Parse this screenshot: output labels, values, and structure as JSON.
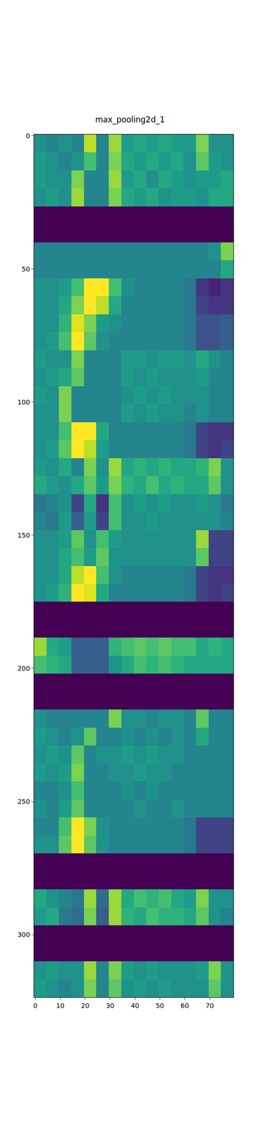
{
  "chart_data": {
    "type": "heatmap",
    "title": "max_pooling2d_1",
    "color": "Viridis",
    "xlim": [
      -0.5,
      79.5
    ],
    "ylim": [
      323.5,
      -0.5
    ],
    "xticks": [
      0,
      10,
      20,
      30,
      40,
      50,
      60,
      70
    ],
    "yticks": [
      0,
      50,
      100,
      150,
      200,
      250,
      300
    ],
    "zlim": [
      0,
      1
    ],
    "x": [
      -0.5,
      4.5,
      9.5,
      14.5,
      19.5,
      24.5,
      29.5,
      34.5,
      39.5,
      44.5,
      49.5,
      54.5,
      59.5,
      64.5,
      69.5,
      74.5,
      79.5
    ],
    "y": [
      -0.5,
      6.25,
      13,
      19.75,
      26.5,
      33.25,
      40,
      46.75,
      53.5,
      60.25,
      67,
      73.75,
      80.5,
      87.25,
      94,
      100.75,
      107.5,
      114.25,
      121,
      127.75,
      134.5,
      141.25,
      148,
      154.75,
      161.5,
      168.25,
      175,
      181.75,
      188.5,
      195.25,
      202,
      208.75,
      215.5,
      222.25,
      229,
      235.75,
      242.5,
      249.25,
      256,
      262.75,
      269.5,
      276.25,
      283,
      289.75,
      296.5,
      303.25,
      310,
      316.75,
      323.5
    ],
    "cells": [
      [
        0.5,
        0.45,
        0.5,
        0.45,
        0.9,
        0.45,
        0.85,
        0.55,
        0.6,
        0.55,
        0.6,
        0.55,
        0.55,
        0.8,
        0.5,
        0.5
      ],
      [
        0.55,
        0.5,
        0.45,
        0.5,
        0.7,
        0.45,
        0.8,
        0.6,
        0.55,
        0.6,
        0.55,
        0.6,
        0.5,
        0.75,
        0.55,
        0.5
      ],
      [
        0.55,
        0.5,
        0.5,
        0.8,
        0.45,
        0.45,
        0.85,
        0.55,
        0.6,
        0.5,
        0.6,
        0.55,
        0.5,
        0.55,
        0.55,
        0.6
      ],
      [
        0.5,
        0.55,
        0.5,
        0.85,
        0.45,
        0.45,
        0.8,
        0.6,
        0.55,
        0.6,
        0.5,
        0.55,
        0.55,
        0.5,
        0.6,
        0.6
      ],
      [
        0,
        0,
        0,
        0,
        0,
        0,
        0,
        0,
        0,
        0,
        0,
        0,
        0,
        0,
        0,
        0
      ],
      [
        0,
        0,
        0,
        0,
        0,
        0,
        0,
        0,
        0,
        0,
        0,
        0,
        0,
        0,
        0,
        0
      ],
      [
        0.45,
        0.45,
        0.45,
        0.45,
        0.45,
        0.45,
        0.45,
        0.45,
        0.45,
        0.45,
        0.45,
        0.45,
        0.45,
        0.45,
        0.5,
        0.8
      ],
      [
        0.45,
        0.45,
        0.45,
        0.45,
        0.45,
        0.45,
        0.45,
        0.45,
        0.45,
        0.45,
        0.45,
        0.45,
        0.45,
        0.45,
        0.45,
        0.6
      ],
      [
        0.5,
        0.5,
        0.55,
        0.7,
        1,
        1,
        0.7,
        0.5,
        0.45,
        0.45,
        0.45,
        0.45,
        0.4,
        0.15,
        0.1,
        0.15
      ],
      [
        0.5,
        0.5,
        0.6,
        0.8,
        1,
        0.9,
        0.6,
        0.45,
        0.45,
        0.45,
        0.45,
        0.45,
        0.4,
        0.2,
        0.15,
        0.15
      ],
      [
        0.5,
        0.5,
        0.65,
        0.95,
        0.8,
        0.55,
        0.5,
        0.45,
        0.45,
        0.45,
        0.45,
        0.45,
        0.4,
        0.25,
        0.25,
        0.3
      ],
      [
        0.5,
        0.55,
        0.7,
        1,
        0.75,
        0.5,
        0.45,
        0.45,
        0.45,
        0.45,
        0.45,
        0.45,
        0.4,
        0.25,
        0.25,
        0.3
      ],
      [
        0.55,
        0.5,
        0.5,
        0.8,
        0.45,
        0.45,
        0.45,
        0.55,
        0.55,
        0.5,
        0.55,
        0.55,
        0.5,
        0.6,
        0.5,
        0.45
      ],
      [
        0.5,
        0.55,
        0.6,
        0.75,
        0.45,
        0.45,
        0.45,
        0.55,
        0.5,
        0.55,
        0.5,
        0.5,
        0.5,
        0.55,
        0.45,
        0.45
      ],
      [
        0.55,
        0.5,
        0.8,
        0.45,
        0.45,
        0.45,
        0.45,
        0.5,
        0.55,
        0.5,
        0.55,
        0.5,
        0.5,
        0.5,
        0.45,
        0.45
      ],
      [
        0.5,
        0.5,
        0.8,
        0.45,
        0.45,
        0.45,
        0.45,
        0.55,
        0.5,
        0.55,
        0.5,
        0.5,
        0.45,
        0.5,
        0.45,
        0.45
      ],
      [
        0.5,
        0.5,
        0.7,
        1,
        1,
        0.6,
        0.45,
        0.45,
        0.45,
        0.45,
        0.45,
        0.45,
        0.4,
        0.2,
        0.15,
        0.15
      ],
      [
        0.5,
        0.55,
        0.75,
        1,
        0.9,
        0.55,
        0.45,
        0.45,
        0.45,
        0.45,
        0.45,
        0.45,
        0.4,
        0.2,
        0.15,
        0.2
      ],
      [
        0.55,
        0.5,
        0.6,
        0.45,
        0.8,
        0.5,
        0.85,
        0.6,
        0.65,
        0.6,
        0.65,
        0.6,
        0.6,
        0.65,
        0.8,
        0.5
      ],
      [
        0.6,
        0.55,
        0.5,
        0.6,
        0.75,
        0.55,
        0.8,
        0.65,
        0.6,
        0.7,
        0.6,
        0.65,
        0.6,
        0.6,
        0.75,
        0.5
      ],
      [
        0.4,
        0.45,
        0.5,
        0.2,
        0.6,
        0.15,
        0.7,
        0.5,
        0.55,
        0.5,
        0.55,
        0.5,
        0.5,
        0.55,
        0.5,
        0.4
      ],
      [
        0.45,
        0.4,
        0.55,
        0.3,
        0.55,
        0.2,
        0.7,
        0.5,
        0.5,
        0.55,
        0.5,
        0.5,
        0.5,
        0.5,
        0.5,
        0.45
      ],
      [
        0.5,
        0.5,
        0.55,
        0.75,
        0.5,
        0.7,
        0.55,
        0.5,
        0.5,
        0.5,
        0.5,
        0.5,
        0.5,
        0.85,
        0.2,
        0.2
      ],
      [
        0.5,
        0.5,
        0.6,
        0.7,
        0.55,
        0.75,
        0.5,
        0.5,
        0.5,
        0.5,
        0.5,
        0.5,
        0.5,
        0.75,
        0.2,
        0.2
      ],
      [
        0.5,
        0.5,
        0.6,
        0.9,
        1,
        0.7,
        0.5,
        0.45,
        0.45,
        0.45,
        0.45,
        0.45,
        0.4,
        0.2,
        0.15,
        0.15
      ],
      [
        0.5,
        0.55,
        0.65,
        1,
        0.95,
        0.6,
        0.45,
        0.45,
        0.45,
        0.45,
        0.45,
        0.45,
        0.4,
        0.2,
        0.15,
        0.2
      ],
      [
        0,
        0,
        0,
        0,
        0,
        0,
        0,
        0,
        0,
        0,
        0,
        0,
        0,
        0,
        0,
        0
      ],
      [
        0,
        0,
        0,
        0,
        0,
        0,
        0,
        0,
        0,
        0,
        0,
        0,
        0,
        0,
        0,
        0
      ],
      [
        0.85,
        0.6,
        0.55,
        0.3,
        0.3,
        0.3,
        0.65,
        0.7,
        0.75,
        0.7,
        0.75,
        0.7,
        0.7,
        0.6,
        0.65,
        0.6
      ],
      [
        0.7,
        0.65,
        0.6,
        0.3,
        0.3,
        0.3,
        0.5,
        0.6,
        0.7,
        0.65,
        0.7,
        0.65,
        0.6,
        0.6,
        0.6,
        0.6
      ],
      [
        0,
        0,
        0,
        0,
        0,
        0,
        0,
        0,
        0,
        0,
        0,
        0,
        0,
        0,
        0,
        0
      ],
      [
        0,
        0,
        0,
        0,
        0,
        0,
        0,
        0,
        0,
        0,
        0,
        0,
        0,
        0,
        0,
        0
      ],
      [
        0.5,
        0.45,
        0.45,
        0.45,
        0.45,
        0.45,
        0.8,
        0.5,
        0.5,
        0.45,
        0.5,
        0.5,
        0.45,
        0.75,
        0.45,
        0.45
      ],
      [
        0.55,
        0.5,
        0.45,
        0.5,
        0.75,
        0.45,
        0.45,
        0.5,
        0.45,
        0.5,
        0.45,
        0.5,
        0.45,
        0.6,
        0.45,
        0.45
      ],
      [
        0.5,
        0.55,
        0.5,
        0.75,
        0.45,
        0.5,
        0.5,
        0.55,
        0.5,
        0.55,
        0.5,
        0.5,
        0.45,
        0.45,
        0.45,
        0.45
      ],
      [
        0.55,
        0.5,
        0.55,
        0.8,
        0.45,
        0.45,
        0.5,
        0.5,
        0.55,
        0.5,
        0.5,
        0.45,
        0.45,
        0.45,
        0.45,
        0.45
      ],
      [
        0.45,
        0.45,
        0.5,
        0.7,
        0.45,
        0.45,
        0.45,
        0.5,
        0.45,
        0.5,
        0.45,
        0.45,
        0.45,
        0.45,
        0.45,
        0.45
      ],
      [
        0.5,
        0.45,
        0.55,
        0.75,
        0.45,
        0.45,
        0.45,
        0.45,
        0.5,
        0.45,
        0.45,
        0.5,
        0.45,
        0.45,
        0.45,
        0.45
      ],
      [
        0.45,
        0.45,
        0.7,
        1,
        0.8,
        0.5,
        0.45,
        0.45,
        0.45,
        0.45,
        0.45,
        0.45,
        0.4,
        0.2,
        0.2,
        0.2
      ],
      [
        0.5,
        0.5,
        0.75,
        1,
        0.75,
        0.5,
        0.45,
        0.45,
        0.45,
        0.45,
        0.45,
        0.45,
        0.4,
        0.2,
        0.2,
        0.2
      ],
      [
        0,
        0,
        0,
        0,
        0,
        0,
        0,
        0,
        0,
        0,
        0,
        0,
        0,
        0,
        0,
        0
      ],
      [
        0,
        0,
        0,
        0,
        0,
        0,
        0,
        0,
        0,
        0,
        0,
        0,
        0,
        0,
        0,
        0
      ],
      [
        0.6,
        0.5,
        0.45,
        0.4,
        0.85,
        0.35,
        0.85,
        0.6,
        0.7,
        0.65,
        0.7,
        0.6,
        0.55,
        0.8,
        0.5,
        0.5
      ],
      [
        0.55,
        0.6,
        0.4,
        0.35,
        0.8,
        0.3,
        0.85,
        0.65,
        0.6,
        0.7,
        0.65,
        0.65,
        0.6,
        0.75,
        0.5,
        0.45
      ],
      [
        0,
        0,
        0,
        0,
        0,
        0,
        0,
        0,
        0,
        0,
        0,
        0,
        0,
        0,
        0,
        0
      ],
      [
        0,
        0,
        0,
        0,
        0,
        0,
        0,
        0,
        0,
        0,
        0,
        0,
        0,
        0,
        0,
        0
      ],
      [
        0.5,
        0.55,
        0.5,
        0.5,
        0.85,
        0.45,
        0.8,
        0.55,
        0.5,
        0.55,
        0.5,
        0.5,
        0.5,
        0.55,
        0.8,
        0.5
      ],
      [
        0.55,
        0.5,
        0.45,
        0.5,
        0.8,
        0.45,
        0.75,
        0.5,
        0.55,
        0.5,
        0.55,
        0.5,
        0.5,
        0.5,
        0.75,
        0.5
      ]
    ],
    "grid": false
  }
}
